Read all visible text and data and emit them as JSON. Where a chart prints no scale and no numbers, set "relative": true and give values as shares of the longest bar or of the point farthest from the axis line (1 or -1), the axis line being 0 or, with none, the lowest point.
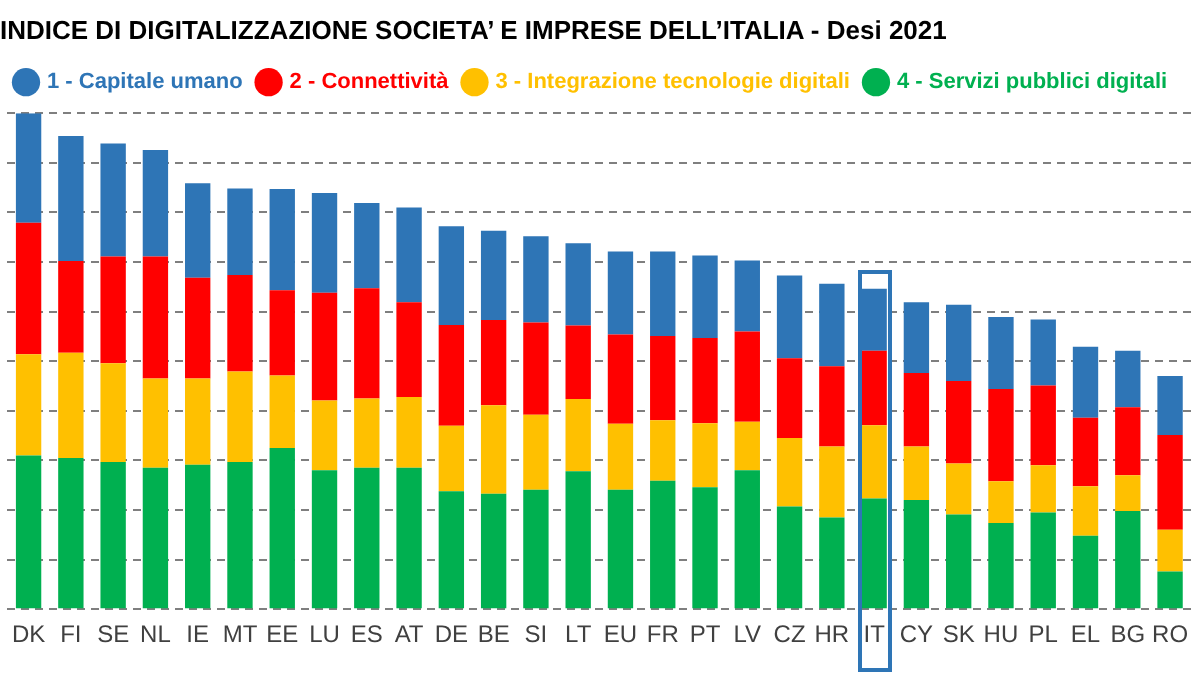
{
  "chart_data": {
    "type": "bar",
    "title": "INDICE DI DIGITALIZZAZIONE SOCIETA’ E IMPRESE DELL’ITALIA - Desi 2021",
    "categories": [
      "DK",
      "FI",
      "SE",
      "NL",
      "IE",
      "MT",
      "EE",
      "LU",
      "ES",
      "AT",
      "DE",
      "BE",
      "SI",
      "LT",
      "EU",
      "FR",
      "PT",
      "LV",
      "CZ",
      "HR",
      "IT",
      "CY",
      "SK",
      "HU",
      "PL",
      "EL",
      "BG",
      "RO"
    ],
    "stacked": true,
    "relative": true,
    "grid": true,
    "legend": "top left",
    "series": [
      {
        "name": "4 - Servizi pubblici digitali",
        "color": "#00b050",
        "values": [
          0.31,
          0.305,
          0.297,
          0.285,
          0.291,
          0.297,
          0.325,
          0.28,
          0.285,
          0.285,
          0.238,
          0.233,
          0.241,
          0.278,
          0.241,
          0.259,
          0.246,
          0.28,
          0.207,
          0.185,
          0.223,
          0.22,
          0.191,
          0.174,
          0.195,
          0.148,
          0.198,
          0.076
        ]
      },
      {
        "name": "3 - Integrazione tecnologie digitali",
        "color": "#ffc000",
        "values": [
          0.204,
          0.212,
          0.199,
          0.18,
          0.174,
          0.182,
          0.146,
          0.141,
          0.14,
          0.143,
          0.132,
          0.178,
          0.151,
          0.146,
          0.133,
          0.122,
          0.129,
          0.098,
          0.138,
          0.143,
          0.148,
          0.108,
          0.103,
          0.084,
          0.095,
          0.1,
          0.072,
          0.084
        ]
      },
      {
        "name": "2 - Connettività",
        "color": "#ff0000",
        "values": [
          0.265,
          0.185,
          0.215,
          0.246,
          0.203,
          0.195,
          0.172,
          0.217,
          0.222,
          0.191,
          0.203,
          0.172,
          0.186,
          0.148,
          0.18,
          0.17,
          0.172,
          0.182,
          0.161,
          0.162,
          0.15,
          0.148,
          0.166,
          0.186,
          0.161,
          0.138,
          0.137,
          0.191
        ]
      },
      {
        "name": "1 - Capitale umano",
        "color": "#2e75b6",
        "values": [
          0.221,
          0.252,
          0.228,
          0.215,
          0.191,
          0.174,
          0.204,
          0.201,
          0.172,
          0.191,
          0.199,
          0.18,
          0.174,
          0.166,
          0.167,
          0.17,
          0.166,
          0.143,
          0.167,
          0.166,
          0.125,
          0.143,
          0.154,
          0.145,
          0.133,
          0.143,
          0.114,
          0.119
        ]
      }
    ]
  }
}
